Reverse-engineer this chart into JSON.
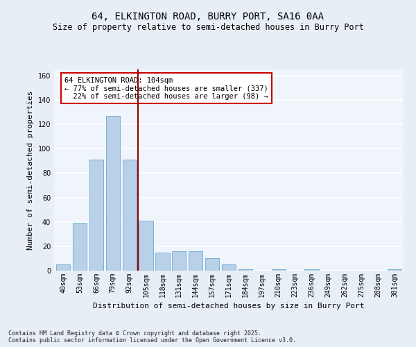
{
  "title1": "64, ELKINGTON ROAD, BURRY PORT, SA16 0AA",
  "title2": "Size of property relative to semi-detached houses in Burry Port",
  "xlabel": "Distribution of semi-detached houses by size in Burry Port",
  "ylabel": "Number of semi-detached properties",
  "categories": [
    "40sqm",
    "53sqm",
    "66sqm",
    "79sqm",
    "92sqm",
    "105sqm",
    "118sqm",
    "131sqm",
    "144sqm",
    "157sqm",
    "171sqm",
    "184sqm",
    "197sqm",
    "210sqm",
    "223sqm",
    "236sqm",
    "249sqm",
    "262sqm",
    "275sqm",
    "288sqm",
    "301sqm"
  ],
  "values": [
    5,
    39,
    91,
    127,
    91,
    41,
    15,
    16,
    16,
    10,
    5,
    1,
    0,
    1,
    0,
    1,
    0,
    0,
    0,
    0,
    1
  ],
  "bar_color": "#b8d0e8",
  "bar_edge_color": "#6aaad4",
  "vline_x": 4.5,
  "vline_color": "#990000",
  "annotation_text": "64 ELKINGTON ROAD: 104sqm\n← 77% of semi-detached houses are smaller (337)\n  22% of semi-detached houses are larger (98) →",
  "annotation_box_color": "#ffffff",
  "annotation_box_edge_color": "#cc0000",
  "ylim": [
    0,
    165
  ],
  "yticks": [
    0,
    20,
    40,
    60,
    80,
    100,
    120,
    140,
    160
  ],
  "footer_text": "Contains HM Land Registry data © Crown copyright and database right 2025.\nContains public sector information licensed under the Open Government Licence v3.0.",
  "bg_color": "#e8eef5",
  "plot_bg_color": "#f0f4fb",
  "grid_color": "#ffffff",
  "title_fontsize": 10,
  "subtitle_fontsize": 8.5,
  "axis_label_fontsize": 8,
  "tick_fontsize": 7,
  "annotation_fontsize": 7.5,
  "footer_fontsize": 6
}
